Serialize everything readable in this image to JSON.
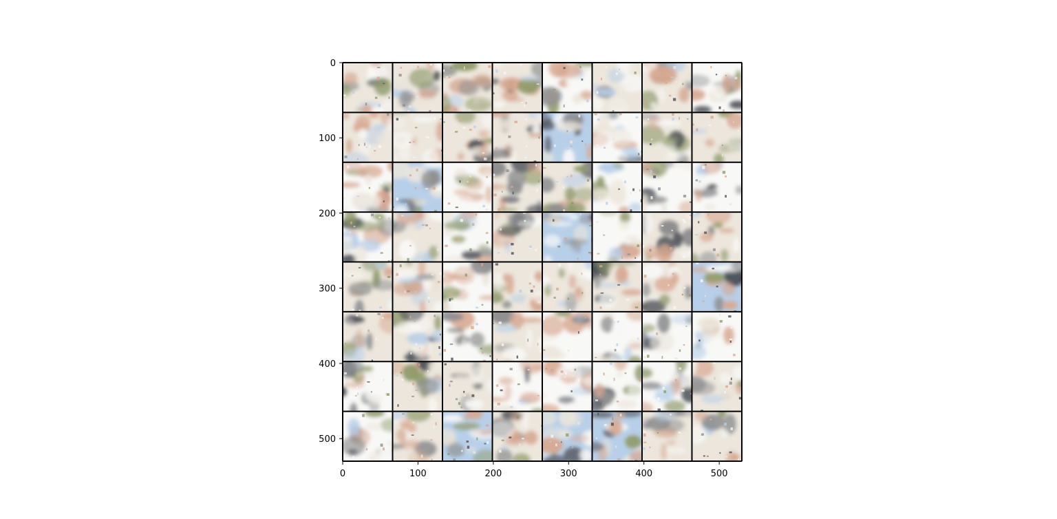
{
  "figure": {
    "kind": "matplotlib imshow of a grid of generated image samples",
    "grid": {
      "rows": 8,
      "cols": 8
    },
    "grid_line_color": "#000000",
    "background_color": "#ffffff"
  },
  "axes": {
    "x": {
      "range": [
        0,
        530
      ],
      "ticks": [
        {
          "value": 0,
          "label": "0"
        },
        {
          "value": 100,
          "label": "100"
        },
        {
          "value": 200,
          "label": "200"
        },
        {
          "value": 300,
          "label": "300"
        },
        {
          "value": 400,
          "label": "400"
        },
        {
          "value": 500,
          "label": "500"
        }
      ]
    },
    "y": {
      "range": [
        0,
        530
      ],
      "inverted": true,
      "ticks": [
        {
          "value": 0,
          "label": "0"
        },
        {
          "value": 100,
          "label": "100"
        },
        {
          "value": 200,
          "label": "200"
        },
        {
          "value": 300,
          "label": "300"
        },
        {
          "value": 400,
          "label": "400"
        },
        {
          "value": 500,
          "label": "500"
        }
      ]
    }
  },
  "palette": {
    "cream": "#ece6dc",
    "white": "#f8f8f6",
    "gray": "#8f9092",
    "dark": "#4b4f57",
    "peach": "#d7a891",
    "blue": "#b7cfe8",
    "green": "#8f9a6a"
  }
}
